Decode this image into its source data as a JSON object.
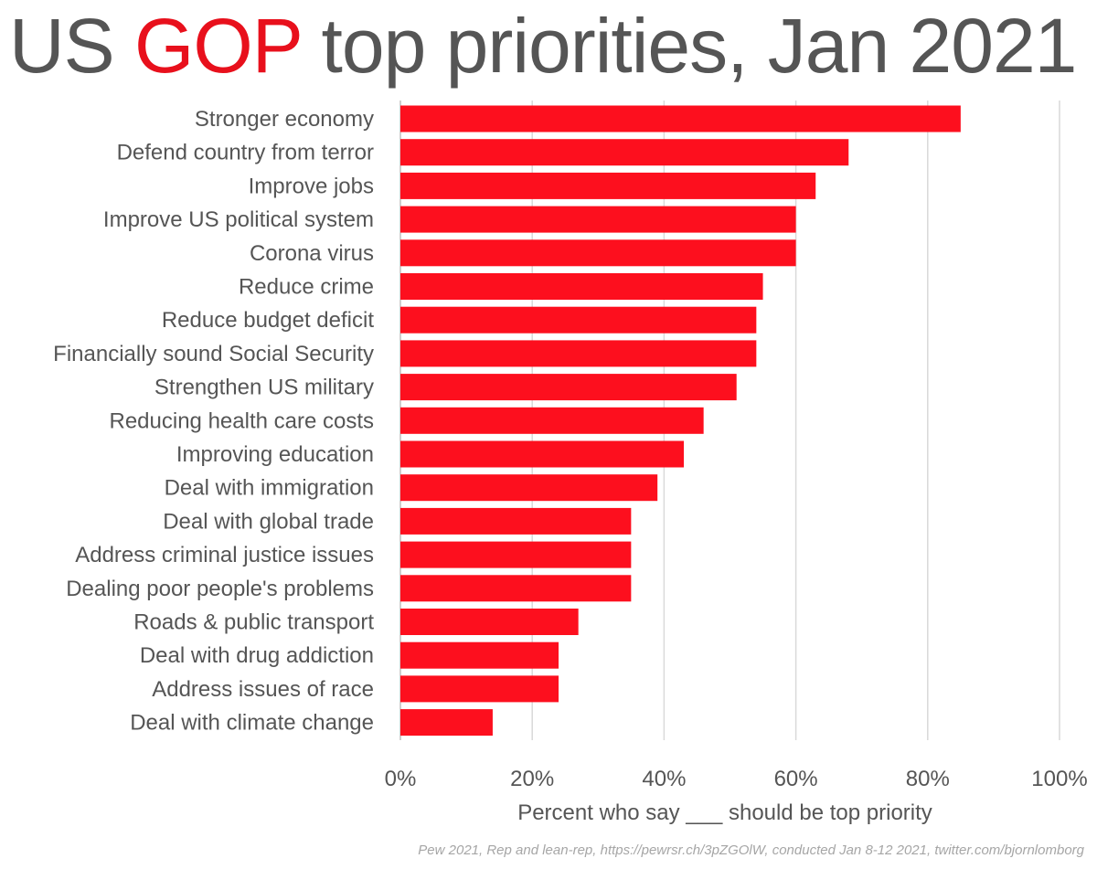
{
  "title": {
    "prefix": "US ",
    "highlight": "GOP",
    "suffix": " top priorities, Jan 2021"
  },
  "footer": "Pew 2021, Rep and lean-rep, https://pewrsr.ch/3pZGOlW, conducted Jan 8-12 2021, twitter.com/bjornlomborg",
  "colors": {
    "bar": "#fd0f1e",
    "title_highlight": "#e8101c",
    "text": "#555555",
    "grid": "#d9d9d9"
  },
  "chart_data": {
    "type": "bar",
    "orientation": "horizontal",
    "title": "US GOP top priorities, Jan 2021",
    "xlabel": "Percent who say ___ should be top priority",
    "ylabel": "",
    "xlim": [
      0,
      100
    ],
    "xticks": [
      "0%",
      "20%",
      "40%",
      "60%",
      "80%",
      "100%"
    ],
    "grid": true,
    "categories": [
      "Stronger economy",
      "Defend country from terror",
      "Improve jobs",
      "Improve US political system",
      "Corona virus",
      "Reduce crime",
      "Reduce budget deficit",
      "Financially sound Social Security",
      "Strengthen US military",
      "Reducing health care costs",
      "Improving education",
      "Deal with immigration",
      "Deal with global trade",
      "Address criminal justice issues",
      "Dealing poor people's problems",
      "Roads & public transport",
      "Deal with drug addiction",
      "Address issues of race",
      "Deal with climate change"
    ],
    "values": [
      85,
      68,
      63,
      60,
      60,
      55,
      54,
      54,
      51,
      46,
      43,
      39,
      35,
      35,
      35,
      27,
      24,
      24,
      14
    ]
  }
}
